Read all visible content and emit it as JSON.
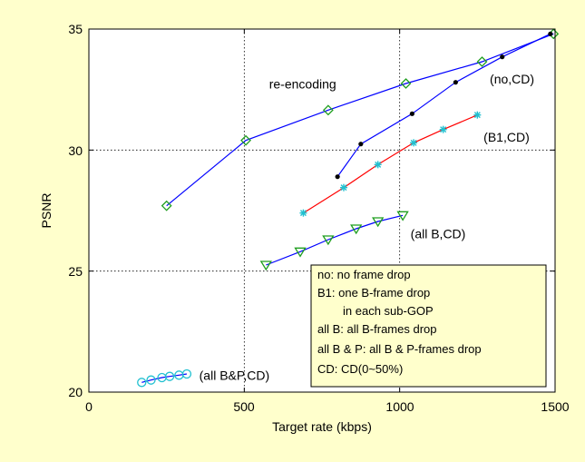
{
  "chart_data": {
    "type": "line",
    "xlabel": "Target rate (kbps)",
    "ylabel": "PSNR",
    "xlim": [
      0,
      1500
    ],
    "ylim": [
      20,
      35
    ],
    "xticks": [
      "0",
      "500",
      "1000",
      "1500"
    ],
    "yticks": [
      "20",
      "25",
      "30",
      "35"
    ],
    "grid": true,
    "colors": {
      "background": "#ffffcc",
      "plot_area": "#ffffff",
      "blue": "#0000ff",
      "red": "#ff0000",
      "green": "#1f9e1f",
      "cyan": "#20c0d0",
      "black": "#000000"
    },
    "series": [
      {
        "key": "reencoding",
        "line": "blue",
        "marker": "diamond",
        "markerColor": "green",
        "x": [
          250,
          505,
          770,
          1020,
          1265,
          1495
        ],
        "y": [
          27.7,
          30.4,
          31.65,
          32.75,
          33.65,
          34.8
        ]
      },
      {
        "key": "noCD",
        "line": "blue",
        "marker": "dot",
        "markerColor": "black",
        "x": [
          800,
          875,
          1040,
          1180,
          1330,
          1485
        ],
        "y": [
          28.9,
          30.25,
          31.5,
          32.8,
          33.85,
          34.8
        ]
      },
      {
        "key": "b1CD",
        "line": "red",
        "marker": "star",
        "markerColor": "cyan",
        "x": [
          690,
          820,
          930,
          1045,
          1140,
          1250
        ],
        "y": [
          27.4,
          28.45,
          29.4,
          30.3,
          30.85,
          31.45
        ]
      },
      {
        "key": "allBCD",
        "line": "blue",
        "marker": "triangle-down",
        "markerColor": "green",
        "x": [
          570,
          680,
          770,
          860,
          930,
          1010
        ],
        "y": [
          25.25,
          25.8,
          26.3,
          26.75,
          27.05,
          27.3
        ]
      },
      {
        "key": "allBPCD",
        "line": "blue",
        "marker": "circle",
        "markerColor": "cyan",
        "x": [
          170,
          200,
          235,
          260,
          290,
          315
        ],
        "y": [
          20.4,
          20.5,
          20.6,
          20.65,
          20.7,
          20.75
        ]
      }
    ],
    "annotations": [
      {
        "text": "re-encoding",
        "x": 580,
        "y": 32.55
      },
      {
        "text": "(no,CD)",
        "x": 1290,
        "y": 32.75
      },
      {
        "text": "(B1,CD)",
        "x": 1270,
        "y": 30.35
      },
      {
        "text": "(all B,CD)",
        "x": 1035,
        "y": 26.35
      },
      {
        "text": "(all B&P,CD)",
        "x": 355,
        "y": 20.5
      }
    ],
    "legend_box": {
      "placement": "lower-right",
      "lines": [
        "no: no frame drop",
        "B1: one B-frame drop",
        "in each sub-GOP",
        "all B: all B-frames drop",
        "all B & P: all B & P-frames drop",
        "CD: CD(0~50%)"
      ]
    }
  }
}
